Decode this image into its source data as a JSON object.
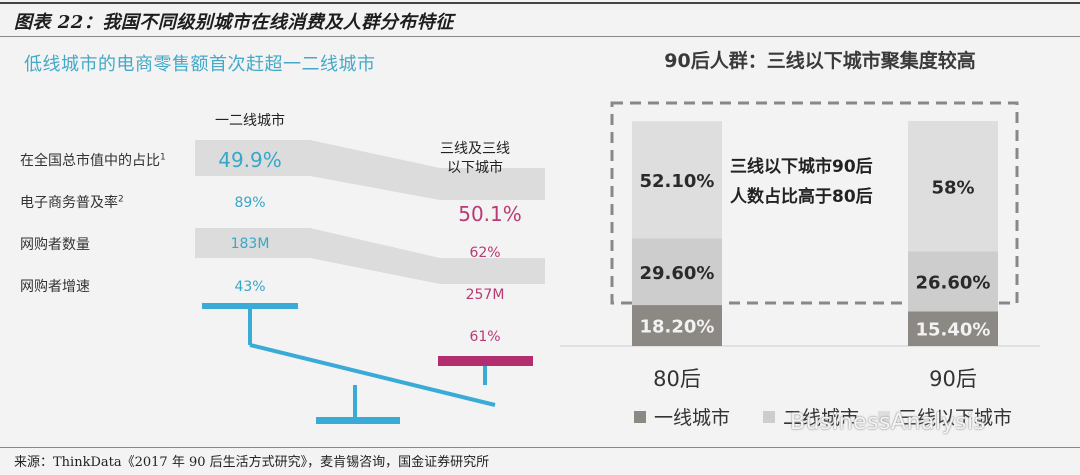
{
  "figure_title": "图表 22：我国不同级别城市在线消费及人群分布特征",
  "source": "来源：ThinkData《2017 年 90 后生活方式研究》，麦肯锡咨询，国金证券研究所",
  "watermark": "BusinessAnalysis",
  "left_panel": {
    "subtitle": "低线城市的电商零售额首次赶超一二线城市",
    "col_a_header": "一二线城市",
    "col_b_header_line1": "三线及三线",
    "col_b_header_line2": "以下城市",
    "row_labels": [
      "在全国总市值中的占比",
      "电子商务普及率",
      "网购者数量",
      "网购者增速"
    ],
    "row_label_notes": [
      "1",
      "2",
      "",
      ""
    ],
    "col_a_values": [
      "49.9%",
      "89%",
      "183M",
      "43%"
    ],
    "col_b_values": [
      "50.1%",
      "62%",
      "257M",
      "61%"
    ],
    "colors": {
      "col_a": "#36a8c7",
      "col_b": "#b83a77",
      "band": "#dcdcdc"
    }
  },
  "right_panel": {
    "title": "90后人群：三线以下城市聚集度较高",
    "annotation_line1": "三线以下城市90后",
    "annotation_line2": "人数占比高于80后",
    "legend": [
      "一线城市",
      "二线城市",
      "三线以下城市"
    ]
  },
  "chart_data": {
    "type": "bar",
    "stacked": true,
    "title": "90后人群：三线以下城市聚集度较高",
    "categories": [
      "80后",
      "90后"
    ],
    "series": [
      {
        "name": "一线城市",
        "values": [
          18.2,
          15.4
        ],
        "labels": [
          "18.20%",
          "15.40%"
        ],
        "color": "#8c8884"
      },
      {
        "name": "二线城市",
        "values": [
          29.6,
          26.6
        ],
        "labels": [
          "29.60%",
          "26.60%"
        ],
        "color": "#cdcdcd"
      },
      {
        "name": "三线以下城市",
        "values": [
          52.1,
          58.0
        ],
        "labels": [
          "52.10%",
          "58%"
        ],
        "color": "#dedede"
      }
    ],
    "ylim": [
      0,
      100
    ],
    "legend_position": "bottom"
  }
}
